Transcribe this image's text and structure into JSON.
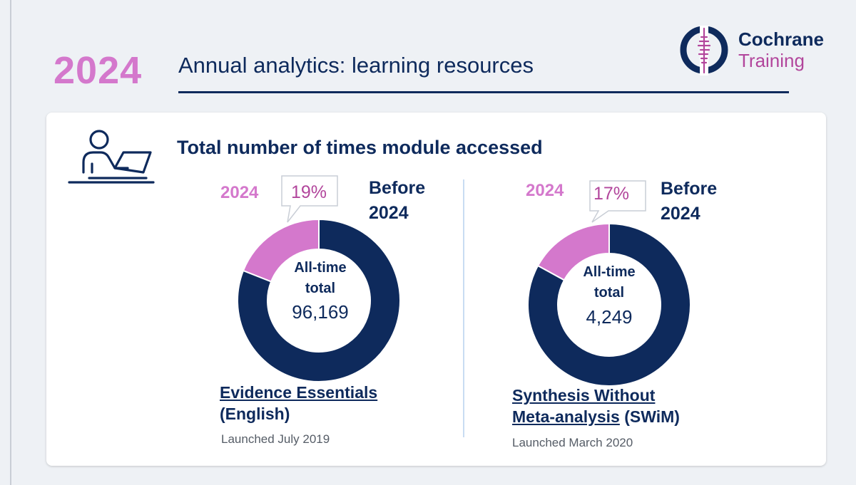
{
  "header": {
    "year": "2024",
    "title": "Annual analytics: learning resources"
  },
  "logo": {
    "line1": "Cochrane",
    "line2": "Training"
  },
  "card": {
    "heading": "Total number of times module accessed"
  },
  "colors": {
    "navy": "#0e2a5c",
    "pink": "#d478cc",
    "purple": "#b2469c"
  },
  "chart_data": [
    {
      "type": "pie",
      "variant": "donut",
      "categories": [
        "2024",
        "Before 2024"
      ],
      "values": [
        19,
        81
      ],
      "unit": "%",
      "callout": "19%",
      "labels": {
        "segment_2024": "2024",
        "segment_before_line1": "Before",
        "segment_before_line2": "2024"
      },
      "center_label_line1": "All-time",
      "center_label_line2": "total",
      "center_value": "96,169",
      "module_name_line1": "Evidence Essentials",
      "module_name_line2": "(English)",
      "launched": "Launched July 2019"
    },
    {
      "type": "pie",
      "variant": "donut",
      "categories": [
        "2024",
        "Before 2024"
      ],
      "values": [
        17,
        83
      ],
      "unit": "%",
      "callout": "17%",
      "labels": {
        "segment_2024": "2024",
        "segment_before_line1": "Before",
        "segment_before_line2": "2024"
      },
      "center_label_line1": "All-time",
      "center_label_line2": "total",
      "center_value": "4,249",
      "module_name_line1": "Synthesis Without",
      "module_name_line2a": "Meta-analysis",
      "module_name_line2b": " (SWiM)",
      "launched": "Launched March 2020"
    }
  ]
}
